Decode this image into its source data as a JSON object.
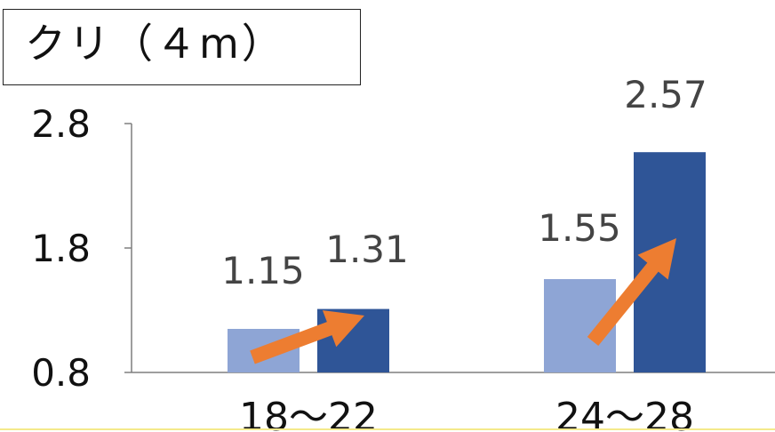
{
  "chart_data": {
    "type": "bar",
    "title": "クリ（４m）",
    "categories": [
      "18～22",
      "24～28"
    ],
    "series": [
      {
        "values": [
          1.15,
          1.55
        ],
        "color": "#8ea5d5"
      },
      {
        "values": [
          1.31,
          2.57
        ],
        "color": "#2f5597"
      }
    ],
    "ylim": [
      0.8,
      2.8
    ],
    "yticks": [
      "0.8",
      "1.8",
      "2.8"
    ],
    "arrow_color": "#ed7d31"
  }
}
